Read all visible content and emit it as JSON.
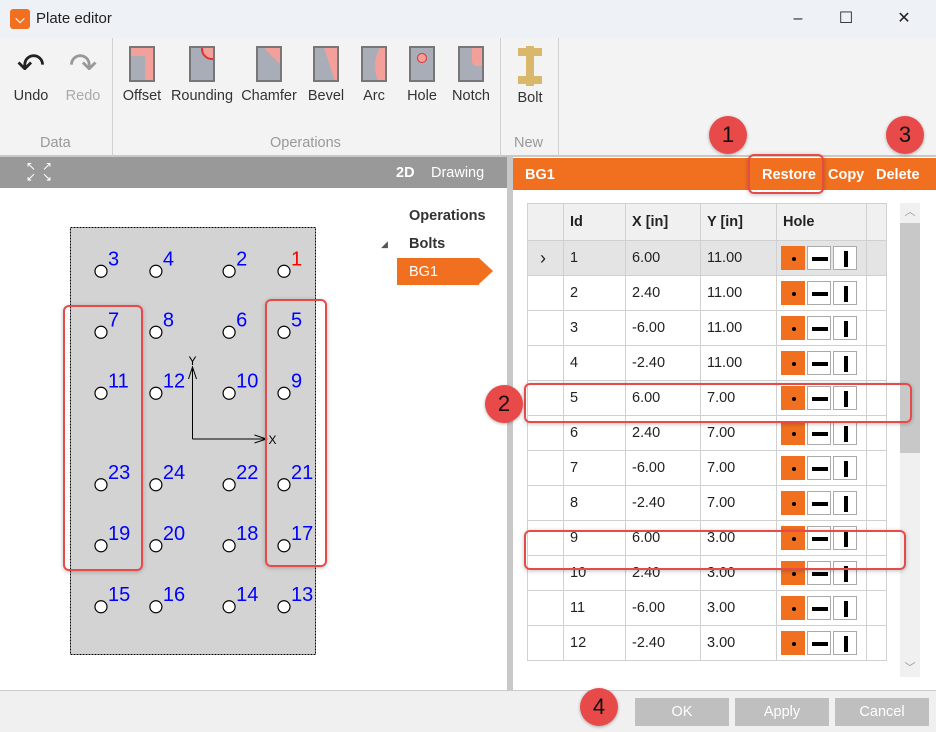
{
  "window": {
    "title": "Plate editor",
    "minimize": "–",
    "maximize": "☐",
    "close": "✕"
  },
  "ribbon": {
    "data_group": "Data",
    "operations_group": "Operations",
    "new_group": "New",
    "undo": "Undo",
    "redo": "Redo",
    "operations": [
      "Offset",
      "Rounding",
      "Chamfer",
      "Bevel",
      "Arc",
      "Hole",
      "Notch"
    ],
    "bolt": "Bolt"
  },
  "left": {
    "view_2d": "2D",
    "view_drawing": "Drawing",
    "tree": {
      "operations": "Operations",
      "bolts": "Bolts",
      "selected": "BG1"
    }
  },
  "drawing": {
    "axis_x": "X",
    "axis_y": "Y",
    "highlight_color": "#ff0000",
    "label_color": "#0000ff",
    "bolts": [
      {
        "id": "1",
        "x": 6,
        "y": 11
      },
      {
        "id": "2",
        "x": 2.4,
        "y": 11
      },
      {
        "id": "3",
        "x": -6,
        "y": 11
      },
      {
        "id": "4",
        "x": -2.4,
        "y": 11
      },
      {
        "id": "5",
        "x": 6,
        "y": 7
      },
      {
        "id": "6",
        "x": 2.4,
        "y": 7
      },
      {
        "id": "7",
        "x": -6,
        "y": 7
      },
      {
        "id": "8",
        "x": -2.4,
        "y": 7
      },
      {
        "id": "9",
        "x": 6,
        "y": 3
      },
      {
        "id": "10",
        "x": 2.4,
        "y": 3
      },
      {
        "id": "11",
        "x": -6,
        "y": 3
      },
      {
        "id": "12",
        "x": -2.4,
        "y": 3
      },
      {
        "id": "13",
        "x": 6,
        "y": -11
      },
      {
        "id": "14",
        "x": 2.4,
        "y": -11
      },
      {
        "id": "15",
        "x": -6,
        "y": -11
      },
      {
        "id": "16",
        "x": -2.4,
        "y": -11
      },
      {
        "id": "17",
        "x": 6,
        "y": -7
      },
      {
        "id": "18",
        "x": 2.4,
        "y": -7
      },
      {
        "id": "19",
        "x": -6,
        "y": -7
      },
      {
        "id": "20",
        "x": -2.4,
        "y": -7
      },
      {
        "id": "21",
        "x": 6,
        "y": -3
      },
      {
        "id": "22",
        "x": 2.4,
        "y": -3
      },
      {
        "id": "23",
        "x": -6,
        "y": -3
      },
      {
        "id": "24",
        "x": -2.4,
        "y": -3
      }
    ]
  },
  "right": {
    "title": "BG1",
    "restore": "Restore",
    "copy": "Copy",
    "delete": "Delete",
    "columns": [
      "Id",
      "X  [in]",
      "Y  [in]",
      "Hole"
    ],
    "rows": [
      [
        "1",
        "6.00",
        "11.00"
      ],
      [
        "2",
        "2.40",
        "11.00"
      ],
      [
        "3",
        "-6.00",
        "11.00"
      ],
      [
        "4",
        "-2.40",
        "11.00"
      ],
      [
        "5",
        "6.00",
        "7.00"
      ],
      [
        "6",
        "2.40",
        "7.00"
      ],
      [
        "7",
        "-6.00",
        "7.00"
      ],
      [
        "8",
        "-2.40",
        "7.00"
      ],
      [
        "9",
        "6.00",
        "3.00"
      ],
      [
        "10",
        "2.40",
        "3.00"
      ],
      [
        "11",
        "-6.00",
        "3.00"
      ],
      [
        "12",
        "-2.40",
        "3.00"
      ]
    ],
    "selected_row_marker": "›"
  },
  "buttons": {
    "ok": "OK",
    "apply": "Apply",
    "cancel": "Cancel"
  },
  "annotations": [
    "1",
    "2",
    "3",
    "4"
  ],
  "accent": "#f07020"
}
